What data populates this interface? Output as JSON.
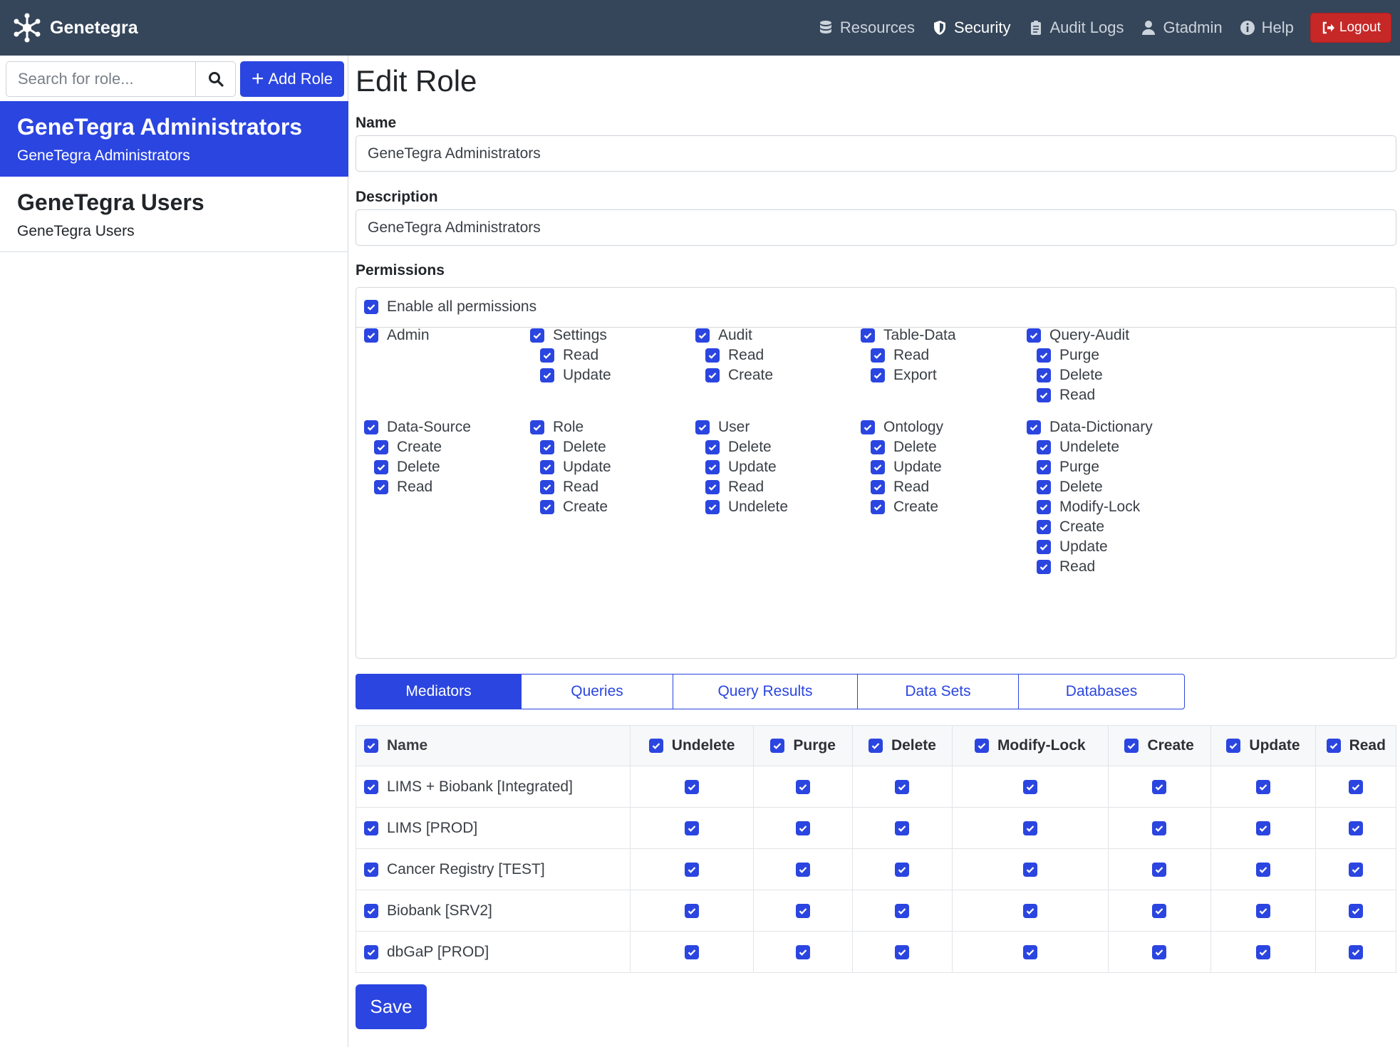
{
  "brand": {
    "name": "Genetegra",
    "logo_icon": "molecule-icon"
  },
  "nav": {
    "items": [
      {
        "label": "Resources",
        "icon": "database-icon",
        "active": false
      },
      {
        "label": "Security",
        "icon": "shield-icon",
        "active": true
      },
      {
        "label": "Audit Logs",
        "icon": "clipboard-icon",
        "active": false
      },
      {
        "label": "Gtadmin",
        "icon": "user-icon",
        "active": false
      },
      {
        "label": "Help",
        "icon": "info-icon",
        "active": false
      }
    ],
    "logout_label": "Logout"
  },
  "sidebar": {
    "search_placeholder": "Search for role...",
    "add_role_label": "Add Role",
    "roles": [
      {
        "title": "GeneTegra Administrators",
        "subtitle": "GeneTegra Administrators",
        "selected": true
      },
      {
        "title": "GeneTegra Users",
        "subtitle": "GeneTegra Users",
        "selected": false
      }
    ]
  },
  "editor": {
    "title": "Edit Role",
    "name_label": "Name",
    "name_value": "GeneTegra Administrators",
    "description_label": "Description",
    "description_value": "GeneTegra Administrators",
    "permissions_label": "Permissions",
    "enable_all_label": "Enable all permissions",
    "permission_groups": [
      {
        "name": "Admin",
        "children": []
      },
      {
        "name": "Settings",
        "children": [
          "Read",
          "Update"
        ]
      },
      {
        "name": "Audit",
        "children": [
          "Read",
          "Create"
        ]
      },
      {
        "name": "Table-Data",
        "children": [
          "Read",
          "Export"
        ]
      },
      {
        "name": "Query-Audit",
        "children": [
          "Purge",
          "Delete",
          "Read"
        ]
      },
      {
        "name": "Data-Source",
        "children": [
          "Create",
          "Delete",
          "Read"
        ]
      },
      {
        "name": "Role",
        "children": [
          "Delete",
          "Update",
          "Read",
          "Create"
        ]
      },
      {
        "name": "User",
        "children": [
          "Delete",
          "Update",
          "Read",
          "Undelete"
        ]
      },
      {
        "name": "Ontology",
        "children": [
          "Delete",
          "Update",
          "Read",
          "Create"
        ]
      },
      {
        "name": "Data-Dictionary",
        "children": [
          "Undelete",
          "Purge",
          "Delete",
          "Modify-Lock",
          "Create",
          "Update",
          "Read"
        ]
      }
    ],
    "tabs": [
      "Mediators",
      "Queries",
      "Query Results",
      "Data Sets",
      "Databases"
    ],
    "active_tab": "Mediators",
    "table": {
      "columns": [
        "Name",
        "Undelete",
        "Purge",
        "Delete",
        "Modify-Lock",
        "Create",
        "Update",
        "Read"
      ],
      "rows": [
        "LIMS + Biobank [Integrated]",
        "LIMS [PROD]",
        "Cancer Registry [TEST]",
        "Biobank [SRV2]",
        "dbGaP [PROD]"
      ]
    },
    "save_label": "Save"
  },
  "colors": {
    "navbar": "#36465a",
    "accent": "#2b45e0",
    "logout": "#c62828"
  }
}
